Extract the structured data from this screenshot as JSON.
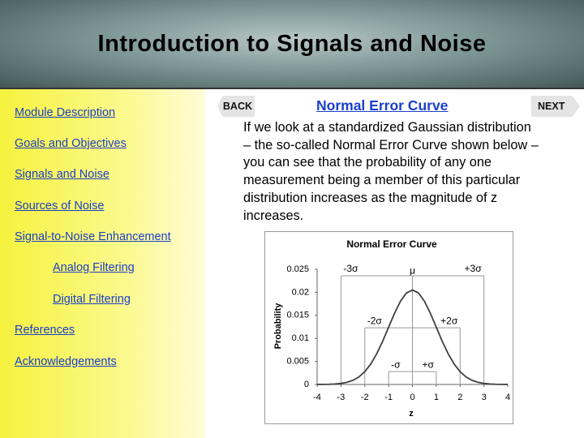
{
  "header": {
    "title": "Introduction to Signals and Noise"
  },
  "nav": [
    {
      "text": "Module Description"
    },
    {
      "text": "Goals and Objectives"
    },
    {
      "text": "Signals and Noise"
    },
    {
      "text": "Sources of Noise"
    },
    {
      "text": "Signal-to-Noise Enhancement",
      "children": [
        {
          "text": "Analog Filtering"
        },
        {
          "text": "Digital Filtering"
        }
      ]
    },
    {
      "text": "References"
    },
    {
      "text": "Acknowledgements"
    }
  ],
  "back": "BACK",
  "next": "NEXT",
  "content": {
    "title": "Normal Error Curve",
    "lines": [
      "If we look at a standardized Gaussian distribution",
      "– the so-called Normal Error Curve shown below –",
      "you can see that the probability of any one",
      "measurement being a member of this particular",
      "distribution increases as the magnitude of z",
      "increases."
    ]
  },
  "chart_data": {
    "type": "line",
    "title": "Normal Error Curve",
    "x_label": "z",
    "y_label": "Probability",
    "x": [
      -4,
      -3.75,
      -3.5,
      -3.25,
      -3,
      -2.75,
      -2.5,
      -2.25,
      -2,
      -1.75,
      -1.5,
      -1.25,
      -1,
      -0.75,
      -0.5,
      -0.25,
      0,
      0.25,
      0.5,
      0.75,
      1,
      1.25,
      1.5,
      1.75,
      2,
      2.25,
      2.5,
      2.75,
      3,
      3.25,
      3.5,
      3.75,
      4
    ],
    "series": [
      {
        "name": "Normal Error Curve",
        "color": "#404040",
        "values": [
          1e-05,
          2e-05,
          4e-05,
          0.0001,
          0.00023,
          0.00047,
          0.0009,
          0.00163,
          0.00277,
          0.00443,
          0.00666,
          0.00938,
          0.01243,
          0.01547,
          0.01809,
          0.01987,
          0.0205,
          0.01987,
          0.01809,
          0.01547,
          0.01243,
          0.00938,
          0.00666,
          0.00443,
          0.00277,
          0.00163,
          0.0009,
          0.00047,
          0.00023,
          0.0001,
          4e-05,
          2e-05,
          1e-05
        ]
      }
    ],
    "xlim": [
      -4,
      4
    ],
    "xticks": [
      -4,
      -3,
      -2,
      -1,
      0,
      1,
      2,
      3,
      4
    ],
    "ylim": [
      0,
      0.025
    ],
    "yticks": [
      0,
      0.005,
      0.01,
      0.015,
      0.02,
      0.025
    ],
    "mean": {
      "label": "μ",
      "x": 0,
      "level": 0.0235
    },
    "brackets": [
      {
        "from": -3,
        "to": 3,
        "level": 0.0236,
        "labels": [
          "-3σ",
          "+3σ"
        ]
      },
      {
        "from": -2,
        "to": 2,
        "level": 0.0123,
        "labels": [
          "-2σ",
          "+2σ"
        ]
      },
      {
        "from": -1,
        "to": 1,
        "level": 0.0028,
        "labels": [
          "-σ",
          "+σ"
        ]
      }
    ]
  }
}
